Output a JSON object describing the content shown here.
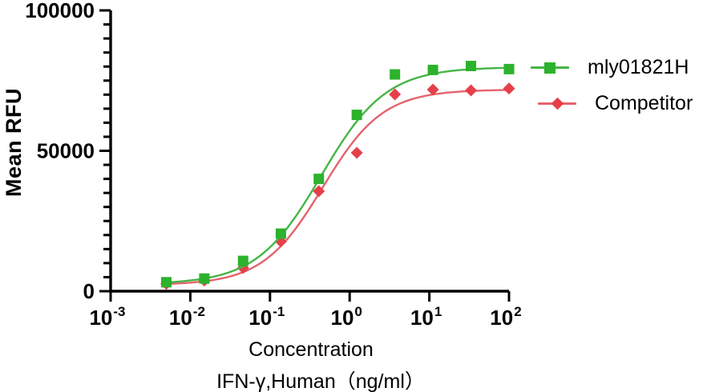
{
  "chart_data": {
    "type": "scatter",
    "title": "",
    "x_axis": {
      "title_line1": "Concentration",
      "title_line2": "IFN-γ,Human（ng/ml）",
      "scale": "log",
      "tick_base": "10",
      "tick_exponents": [
        -3,
        -2,
        -1,
        0,
        1,
        2
      ],
      "range": [
        0.001,
        100
      ],
      "minor_ticks": false
    },
    "y_axis": {
      "title": "Mean RFU",
      "range": [
        0,
        100000
      ],
      "major_ticks": [
        0,
        50000,
        100000
      ],
      "tick_labels": [
        "0",
        "50000",
        "100000"
      ],
      "minor_tick_step": 5000
    },
    "series": [
      {
        "name": "Competitor",
        "marker": "diamond",
        "marker_color": "#e5404a",
        "line_color": "#e4636c",
        "x": [
          0.005,
          0.015,
          0.046,
          0.137,
          0.41,
          1.23,
          3.7,
          11.1,
          33.3,
          100
        ],
        "values": [
          2600,
          3800,
          8300,
          17700,
          35600,
          49300,
          70100,
          71800,
          71500,
          72200
        ],
        "fit_4pl": {
          "bottom": 2200,
          "top": 71800,
          "ec50": 0.46,
          "hill": 1.15
        }
      },
      {
        "name": "mly01821H",
        "marker": "square",
        "marker_color": "#2cb22c",
        "line_color": "#45b545",
        "x": [
          0.005,
          0.015,
          0.046,
          0.137,
          0.41,
          1.23,
          3.7,
          11.1,
          33.3,
          100
        ],
        "values": [
          3200,
          4500,
          10800,
          20500,
          40000,
          62800,
          77200,
          78800,
          80200,
          79100
        ],
        "fit_4pl": {
          "bottom": 2500,
          "top": 79800,
          "ec50": 0.44,
          "hill": 1.07
        }
      }
    ],
    "legend": {
      "position": "right-top",
      "entries": [
        {
          "label": "mly01821H",
          "series": "mly01821H",
          "marker": "square"
        },
        {
          "label": "Competitor",
          "series": "Competitor",
          "marker": "diamond"
        }
      ]
    },
    "grid": false
  },
  "colors": {
    "axis": "#000000",
    "text": "#000000",
    "background": "#ffffff"
  }
}
